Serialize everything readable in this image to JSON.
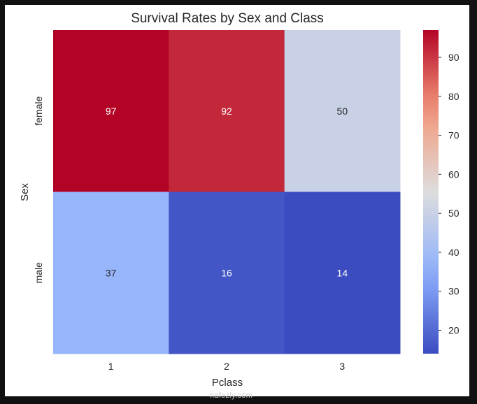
{
  "chart_data": {
    "type": "heatmap",
    "title": "Survival Rates by Sex and Class",
    "xlabel": "Pclass",
    "ylabel": "Sex",
    "x_categories": [
      "1",
      "2",
      "3"
    ],
    "y_categories": [
      "female",
      "male"
    ],
    "values": [
      [
        97,
        92,
        50
      ],
      [
        37,
        16,
        14
      ]
    ],
    "colormap": "coolwarm",
    "vmin": 14,
    "vmax": 97,
    "colorbar_ticks": [
      20,
      30,
      40,
      50,
      60,
      70,
      80,
      90
    ],
    "annotated": true,
    "grid": false
  },
  "watermark": "nafezly.com"
}
